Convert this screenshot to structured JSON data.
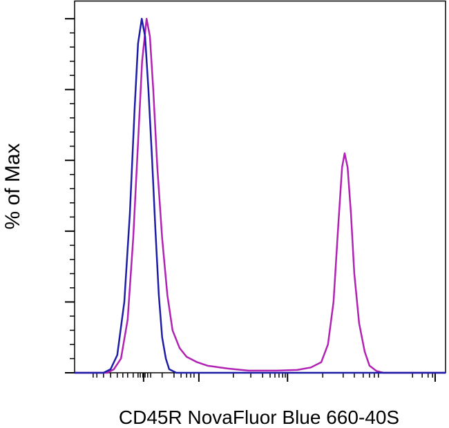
{
  "chart_data": {
    "type": "line",
    "ylabel": "% of Max",
    "xlabel": "CD45R NovaFluor Blue 660-40S",
    "xlim": [
      0,
      100
    ],
    "ylim": [
      0,
      105
    ],
    "xticks": [
      18.6,
      33.5,
      57.4,
      97.2
    ],
    "xminor_ticks": [
      5.0,
      6.0,
      7.8,
      9.7,
      11.5,
      13.0,
      14.3,
      15.8,
      17.1,
      17.7,
      18.4,
      19.0,
      19.7,
      20.5,
      23.6,
      26.8,
      28.7,
      30.2,
      31.3,
      32.2,
      42.8,
      47.5,
      50.7,
      52.7,
      54.0,
      55.1,
      56.1,
      56.8,
      66.9,
      72.4,
      75.4,
      77.8,
      79.5,
      80.8,
      81.9,
      91.1,
      93.7,
      95.3,
      96.5
    ],
    "yticks": [
      0,
      20,
      40,
      60,
      80,
      100
    ],
    "yminor_ticks": [
      4,
      8,
      12,
      16,
      24,
      28,
      32,
      36,
      44,
      48,
      52,
      56,
      64,
      68,
      72,
      76,
      84,
      88,
      92,
      96
    ],
    "series": [
      {
        "color": "#1c1ca6",
        "x": [
          0,
          7.8,
          9.7,
          11.5,
          13.4,
          14.9,
          16.2,
          17.1,
          18.1,
          19.0,
          19.9,
          20.9,
          21.8,
          22.7,
          23.6,
          24.6,
          25.5,
          27.4,
          100
        ],
        "values": [
          0,
          0,
          1,
          5,
          20,
          45,
          75,
          93,
          100,
          95,
          80,
          60,
          40,
          22,
          10,
          4,
          1,
          0,
          0
        ]
      },
      {
        "color": "#b021b4",
        "x": [
          0,
          8.8,
          10.6,
          12.5,
          14.3,
          15.8,
          17.1,
          18.2,
          19.4,
          20.3,
          21.2,
          22.3,
          23.6,
          25.0,
          26.4,
          28.3,
          30.2,
          33.0,
          35.8,
          41.3,
          46.9,
          54.4,
          60.0,
          63.7,
          66.5,
          68.3,
          69.8,
          71.1,
          72.1,
          72.8,
          73.6,
          74.5,
          75.4,
          76.7,
          78.2,
          79.5,
          81.4,
          83.2,
          100
        ],
        "values": [
          0,
          0,
          1,
          4,
          15,
          38,
          65,
          88,
          100,
          95,
          80,
          58,
          38,
          22,
          12,
          7,
          4.5,
          3,
          2,
          1.2,
          0.6,
          0.6,
          0.8,
          1.5,
          3,
          8,
          20,
          42,
          58,
          62,
          58,
          45,
          28,
          14,
          6,
          2,
          0.5,
          0,
          0
        ]
      }
    ]
  }
}
